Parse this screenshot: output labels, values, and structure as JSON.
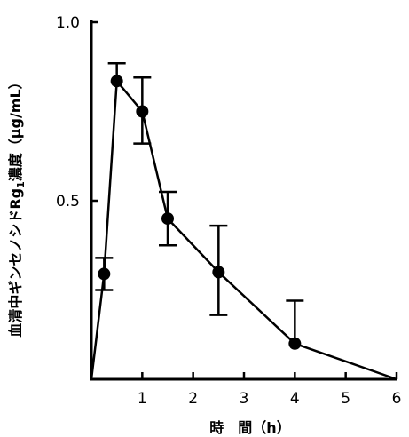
{
  "chart_data": {
    "type": "line",
    "xlabel": "時　間（h）",
    "ylabel_main": "血清中ギンセノシドRg",
    "ylabel_sub": "1",
    "ylabel_tail": "濃度（μg/mL）",
    "xlim": [
      0,
      6
    ],
    "ylim": [
      0,
      1.0
    ],
    "x_ticks": [
      1,
      2,
      3,
      4,
      5,
      6
    ],
    "x_tick_labels": [
      "1",
      "2",
      "3",
      "4",
      "5",
      "6"
    ],
    "y_ticks": [
      0.5,
      1.0
    ],
    "y_tick_labels": [
      "0.5",
      "1.0"
    ],
    "grid": false,
    "legend": false,
    "series": [
      {
        "x": [
          0,
          0.25,
          0.5,
          1.0,
          1.5,
          2.5,
          4.0,
          6.0
        ],
        "y": [
          0,
          0.295,
          0.835,
          0.75,
          0.45,
          0.3,
          0.1,
          0
        ],
        "markers": [
          false,
          true,
          true,
          true,
          true,
          true,
          true,
          false
        ],
        "err_up": [
          0,
          0.045,
          0.05,
          0.095,
          0.075,
          0.13,
          0.12,
          0
        ],
        "err_down": [
          0,
          0.045,
          0,
          0.09,
          0.075,
          0.12,
          0,
          0
        ]
      }
    ]
  }
}
